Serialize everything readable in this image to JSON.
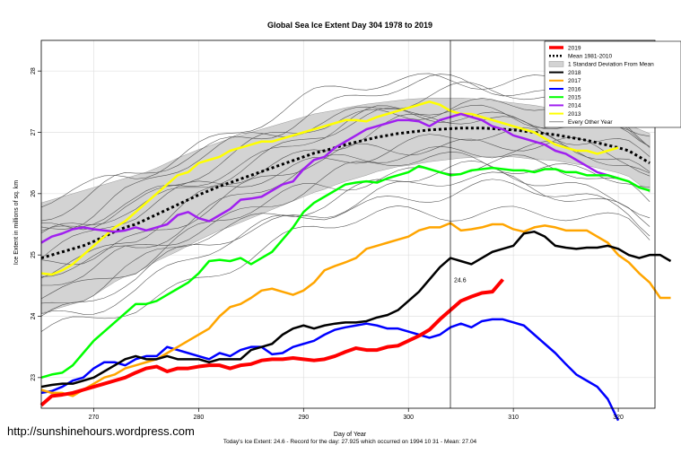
{
  "chart_data": {
    "type": "line",
    "title": "Global Sea Ice Extent Day 304 1978 to 2019",
    "xlabel": "Day of Year",
    "ylabel": "Ice Extent in millions of sq. km",
    "xlim": [
      265,
      323.5
    ],
    "ylim": [
      22.5,
      28.5
    ],
    "xticks": [
      270,
      280,
      290,
      300,
      310,
      320
    ],
    "yticks": [
      23,
      24,
      25,
      26,
      27,
      28
    ],
    "grid": true,
    "legend_position": "top-right",
    "current_day_marker": 304,
    "annotation": "24.6",
    "footer": "Today's Ice Extent: 24.6  - Record for the day: 27.925 which occurred on 1994 10 31  - Mean: 27.04",
    "x_start": 265,
    "mean": [
      24.95,
      25.0,
      25.05,
      25.1,
      25.15,
      25.22,
      25.3,
      25.38,
      25.45,
      25.5,
      25.58,
      25.66,
      25.74,
      25.82,
      25.9,
      25.98,
      26.05,
      26.12,
      26.18,
      26.24,
      26.3,
      26.36,
      26.42,
      26.48,
      26.54,
      26.6,
      26.66,
      26.7,
      26.75,
      26.8,
      26.84,
      26.88,
      26.92,
      26.95,
      26.98,
      27.0,
      27.02,
      27.04,
      27.05,
      27.06,
      27.07,
      27.07,
      27.07,
      27.06,
      27.05,
      27.04,
      27.02,
      27.0,
      26.98,
      26.96,
      26.93,
      26.9,
      26.87,
      26.83,
      26.79,
      26.75,
      26.7,
      26.6,
      26.5
    ],
    "std_upper": [
      25.85,
      25.9,
      25.95,
      26.0,
      26.05,
      26.1,
      26.15,
      26.2,
      26.25,
      26.3,
      26.35,
      26.42,
      26.5,
      26.58,
      26.65,
      26.72,
      26.78,
      26.84,
      26.9,
      26.95,
      27.0,
      27.05,
      27.1,
      27.15,
      27.2,
      27.25,
      27.3,
      27.33,
      27.36,
      27.4,
      27.43,
      27.46,
      27.48,
      27.5,
      27.52,
      27.54,
      27.55,
      27.56,
      27.56,
      27.56,
      27.56,
      27.55,
      27.54,
      27.52,
      27.5,
      27.48,
      27.46,
      27.44,
      27.41,
      27.38,
      27.35,
      27.32,
      27.28,
      27.24,
      27.2,
      27.16,
      27.12,
      27.05,
      26.98
    ],
    "std_lower": [
      24.05,
      24.1,
      24.15,
      24.2,
      24.25,
      24.34,
      24.45,
      24.56,
      24.65,
      24.7,
      24.8,
      24.9,
      24.98,
      25.06,
      25.15,
      25.24,
      25.32,
      25.4,
      25.46,
      25.53,
      25.6,
      25.67,
      25.74,
      25.81,
      25.88,
      25.95,
      26.02,
      26.07,
      26.14,
      26.2,
      26.25,
      26.3,
      26.36,
      26.4,
      26.44,
      26.46,
      26.49,
      26.52,
      26.54,
      26.56,
      26.58,
      26.59,
      26.6,
      26.6,
      26.6,
      26.6,
      26.58,
      26.56,
      26.55,
      26.54,
      26.51,
      26.48,
      26.46,
      26.42,
      26.38,
      26.34,
      26.28,
      26.15,
      26.02
    ],
    "series": [
      {
        "name": "2019",
        "color": "#ff0000",
        "width": 4,
        "values": [
          22.55,
          22.7,
          22.72,
          22.75,
          22.8,
          22.85,
          22.9,
          22.95,
          23.0,
          23.08,
          23.15,
          23.18,
          23.1,
          23.15,
          23.15,
          23.18,
          23.2,
          23.2,
          23.15,
          23.2,
          23.22,
          23.28,
          23.3,
          23.3,
          23.32,
          23.3,
          23.28,
          23.3,
          23.35,
          23.42,
          23.48,
          23.45,
          23.45,
          23.5,
          23.52,
          23.6,
          23.68,
          23.78,
          23.95,
          24.1,
          24.25,
          24.32,
          24.38,
          24.4,
          24.6
        ]
      },
      {
        "name": "2018",
        "color": "#000000",
        "width": 2.5,
        "values": [
          22.85,
          22.88,
          22.9,
          22.9,
          22.95,
          23.0,
          23.1,
          23.2,
          23.3,
          23.35,
          23.3,
          23.3,
          23.35,
          23.3,
          23.3,
          23.3,
          23.25,
          23.3,
          23.3,
          23.3,
          23.45,
          23.5,
          23.55,
          23.7,
          23.8,
          23.85,
          23.8,
          23.85,
          23.88,
          23.9,
          23.9,
          23.92,
          23.98,
          24.02,
          24.1,
          24.25,
          24.4,
          24.6,
          24.8,
          24.95,
          24.9,
          24.85,
          24.95,
          25.05,
          25.1,
          25.15,
          25.35,
          25.38,
          25.3,
          25.15,
          25.12,
          25.1,
          25.12,
          25.12,
          25.15,
          25.1,
          25.0,
          24.95,
          25.0,
          25.0,
          24.9
        ]
      },
      {
        "name": "2017",
        "color": "#ffa500",
        "width": 2.5,
        "values": [
          22.8,
          22.75,
          22.75,
          22.7,
          22.8,
          22.9,
          23.0,
          23.05,
          23.15,
          23.2,
          23.25,
          23.3,
          23.4,
          23.5,
          23.6,
          23.7,
          23.8,
          24.0,
          24.15,
          24.2,
          24.3,
          24.42,
          24.45,
          24.4,
          24.35,
          24.42,
          24.55,
          24.75,
          24.82,
          24.88,
          24.95,
          25.1,
          25.15,
          25.2,
          25.25,
          25.3,
          25.4,
          25.45,
          25.45,
          25.52,
          25.4,
          25.42,
          25.45,
          25.5,
          25.5,
          25.42,
          25.38,
          25.45,
          25.48,
          25.45,
          25.4,
          25.4,
          25.4,
          25.3,
          25.2,
          25.0,
          24.88,
          24.7,
          24.55,
          24.3,
          24.3
        ]
      },
      {
        "name": "2016",
        "color": "#0000ff",
        "width": 2.5,
        "values": [
          22.75,
          22.78,
          22.85,
          22.95,
          23.0,
          23.15,
          23.25,
          23.25,
          23.2,
          23.3,
          23.35,
          23.35,
          23.5,
          23.45,
          23.4,
          23.35,
          23.3,
          23.4,
          23.35,
          23.45,
          23.5,
          23.5,
          23.38,
          23.4,
          23.5,
          23.55,
          23.6,
          23.7,
          23.78,
          23.82,
          23.85,
          23.88,
          23.85,
          23.8,
          23.8,
          23.75,
          23.7,
          23.65,
          23.7,
          23.82,
          23.88,
          23.82,
          23.92,
          23.95,
          23.95,
          23.9,
          23.85,
          23.7,
          23.55,
          23.4,
          23.22,
          23.05,
          22.95,
          22.85,
          22.65,
          22.3
        ]
      },
      {
        "name": "2015",
        "color": "#00ff00",
        "width": 2.5,
        "values": [
          23.0,
          23.05,
          23.08,
          23.2,
          23.4,
          23.6,
          23.75,
          23.9,
          24.05,
          24.2,
          24.2,
          24.25,
          24.35,
          24.45,
          24.55,
          24.7,
          24.9,
          24.92,
          24.9,
          24.95,
          24.85,
          24.95,
          25.05,
          25.25,
          25.45,
          25.7,
          25.85,
          25.95,
          26.05,
          26.15,
          26.18,
          26.2,
          26.18,
          26.25,
          26.3,
          26.35,
          26.45,
          26.4,
          26.35,
          26.3,
          26.32,
          26.38,
          26.4,
          26.42,
          26.4,
          26.38,
          26.38,
          26.35,
          26.4,
          26.4,
          26.35,
          26.35,
          26.3,
          26.3,
          26.3,
          26.25,
          26.2,
          26.1,
          26.05
        ]
      },
      {
        "name": "2014",
        "color": "#a020f0",
        "width": 2.5,
        "values": [
          25.2,
          25.3,
          25.35,
          25.42,
          25.45,
          25.42,
          25.4,
          25.38,
          25.4,
          25.45,
          25.4,
          25.45,
          25.5,
          25.65,
          25.7,
          25.6,
          25.55,
          25.65,
          25.75,
          25.9,
          25.92,
          25.95,
          26.05,
          26.15,
          26.2,
          26.4,
          26.55,
          26.6,
          26.75,
          26.85,
          26.95,
          27.05,
          27.1,
          27.15,
          27.2,
          27.2,
          27.18,
          27.1,
          27.2,
          27.25,
          27.3,
          27.25,
          27.2,
          27.1,
          27.05,
          26.95,
          26.9,
          26.85,
          26.8,
          26.7,
          26.65,
          26.55,
          26.45,
          26.35,
          26.3,
          26.25
        ]
      },
      {
        "name": "2013",
        "color": "#ffff00",
        "width": 2.5,
        "values": [
          24.7,
          24.68,
          24.75,
          24.85,
          25.0,
          25.15,
          25.3,
          25.45,
          25.55,
          25.7,
          25.85,
          26.0,
          26.15,
          26.3,
          26.35,
          26.5,
          26.55,
          26.6,
          26.7,
          26.75,
          26.8,
          26.85,
          26.85,
          26.9,
          26.95,
          27.0,
          27.05,
          27.1,
          27.15,
          27.2,
          27.2,
          27.18,
          27.25,
          27.3,
          27.35,
          27.4,
          27.45,
          27.5,
          27.45,
          27.35,
          27.3,
          27.3,
          27.25,
          27.2,
          27.15,
          27.1,
          27.05,
          27.0,
          26.9,
          26.8,
          26.75,
          26.7,
          26.7,
          26.65,
          26.7,
          26.75
        ]
      }
    ],
    "legend": [
      {
        "label": "2019",
        "style": "thick-red"
      },
      {
        "label": "Mean 1981-2010",
        "style": "dashed-black"
      },
      {
        "label": "1 Standard Deviation From Mean",
        "style": "gray-box"
      },
      {
        "label": "2018",
        "style": "black"
      },
      {
        "label": "2017",
        "style": "orange"
      },
      {
        "label": "2016",
        "style": "blue"
      },
      {
        "label": "2015",
        "style": "green"
      },
      {
        "label": "2014",
        "style": "purple"
      },
      {
        "label": "2013",
        "style": "yellow"
      },
      {
        "label": "Every Other Year",
        "style": "thin-gray"
      }
    ]
  },
  "page": {
    "url_text": "http://sunshinehours.wordpress.com"
  }
}
